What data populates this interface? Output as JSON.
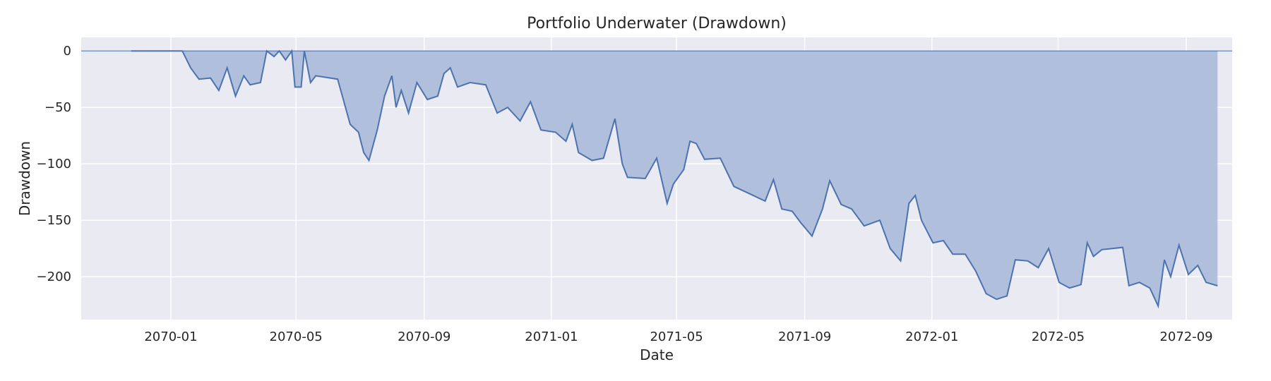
{
  "chart_data": {
    "type": "area",
    "title": "Portfolio Underwater (Drawdown)",
    "xlabel": "Date",
    "ylabel": "Drawdown",
    "grid": true,
    "xlim": [
      "2069-10-07",
      "2072-10-15"
    ],
    "ylim": [
      -238,
      12
    ],
    "x_ticks": [
      "2070-01",
      "2070-05",
      "2070-09",
      "2071-01",
      "2071-05",
      "2071-09",
      "2072-01",
      "2072-05",
      "2072-09"
    ],
    "y_ticks": [
      0,
      -50,
      -100,
      -150,
      -200
    ],
    "series": [
      {
        "line_color": "#4c72b0",
        "fill_color": "#b0bfdb",
        "points": [
          [
            "2069-11-24",
            0
          ],
          [
            "2070-01-12",
            0
          ],
          [
            "2070-01-20",
            -15
          ],
          [
            "2070-01-28",
            -25
          ],
          [
            "2070-02-08",
            -24
          ],
          [
            "2070-02-16",
            -35
          ],
          [
            "2070-02-24",
            -15
          ],
          [
            "2070-03-04",
            -40
          ],
          [
            "2070-03-12",
            -22
          ],
          [
            "2070-03-18",
            -30
          ],
          [
            "2070-03-28",
            -28
          ],
          [
            "2070-04-03",
            0
          ],
          [
            "2070-04-10",
            -5
          ],
          [
            "2070-04-15",
            0
          ],
          [
            "2070-04-21",
            -8
          ],
          [
            "2070-04-27",
            0
          ],
          [
            "2070-04-30",
            -32
          ],
          [
            "2070-05-06",
            -32
          ],
          [
            "2070-05-09",
            0
          ],
          [
            "2070-05-15",
            -28
          ],
          [
            "2070-05-20",
            -22
          ],
          [
            "2070-06-10",
            -25
          ],
          [
            "2070-06-22",
            -65
          ],
          [
            "2070-06-30",
            -72
          ],
          [
            "2070-07-05",
            -90
          ],
          [
            "2070-07-10",
            -97
          ],
          [
            "2070-07-18",
            -70
          ],
          [
            "2070-07-25",
            -40
          ],
          [
            "2070-08-01",
            -22
          ],
          [
            "2070-08-05",
            -50
          ],
          [
            "2070-08-10",
            -35
          ],
          [
            "2070-08-17",
            -55
          ],
          [
            "2070-08-25",
            -28
          ],
          [
            "2070-09-04",
            -43
          ],
          [
            "2070-09-14",
            -40
          ],
          [
            "2070-09-20",
            -20
          ],
          [
            "2070-09-26",
            -15
          ],
          [
            "2070-10-03",
            -32
          ],
          [
            "2070-10-15",
            -28
          ],
          [
            "2070-10-30",
            -30
          ],
          [
            "2070-11-10",
            -55
          ],
          [
            "2070-11-20",
            -50
          ],
          [
            "2070-12-02",
            -62
          ],
          [
            "2070-12-12",
            -45
          ],
          [
            "2070-12-22",
            -70
          ],
          [
            "2071-01-05",
            -72
          ],
          [
            "2071-01-15",
            -80
          ],
          [
            "2071-01-21",
            -65
          ],
          [
            "2071-01-27",
            -90
          ],
          [
            "2071-02-09",
            -97
          ],
          [
            "2071-02-20",
            -95
          ],
          [
            "2071-03-03",
            -60
          ],
          [
            "2071-03-10",
            -100
          ],
          [
            "2071-03-15",
            -112
          ],
          [
            "2071-04-01",
            -113
          ],
          [
            "2071-04-12",
            -95
          ],
          [
            "2071-04-22",
            -135
          ],
          [
            "2071-04-28",
            -118
          ],
          [
            "2071-05-08",
            -105
          ],
          [
            "2071-05-14",
            -80
          ],
          [
            "2071-05-20",
            -82
          ],
          [
            "2071-05-28",
            -96
          ],
          [
            "2071-06-12",
            -95
          ],
          [
            "2071-06-25",
            -120
          ],
          [
            "2071-07-09",
            -126
          ],
          [
            "2071-07-25",
            -133
          ],
          [
            "2071-08-02",
            -114
          ],
          [
            "2071-08-10",
            -140
          ],
          [
            "2071-08-20",
            -142
          ],
          [
            "2071-08-28",
            -152
          ],
          [
            "2071-09-08",
            -164
          ],
          [
            "2071-09-18",
            -140
          ],
          [
            "2071-09-25",
            -115
          ],
          [
            "2071-10-06",
            -136
          ],
          [
            "2071-10-16",
            -140
          ],
          [
            "2071-10-28",
            -155
          ],
          [
            "2071-11-12",
            -150
          ],
          [
            "2071-11-22",
            -175
          ],
          [
            "2071-12-02",
            -186
          ],
          [
            "2071-12-10",
            -135
          ],
          [
            "2071-12-16",
            -128
          ],
          [
            "2071-12-22",
            -150
          ],
          [
            "2072-01-02",
            -170
          ],
          [
            "2072-01-12",
            -168
          ],
          [
            "2072-01-21",
            -180
          ],
          [
            "2072-02-02",
            -180
          ],
          [
            "2072-02-12",
            -195
          ],
          [
            "2072-02-22",
            -215
          ],
          [
            "2072-03-03",
            -220
          ],
          [
            "2072-03-13",
            -217
          ],
          [
            "2072-03-21",
            -185
          ],
          [
            "2072-04-02",
            -186
          ],
          [
            "2072-04-12",
            -192
          ],
          [
            "2072-04-22",
            -175
          ],
          [
            "2072-05-02",
            -205
          ],
          [
            "2072-05-12",
            -210
          ],
          [
            "2072-05-23",
            -207
          ],
          [
            "2072-05-29",
            -170
          ],
          [
            "2072-06-04",
            -182
          ],
          [
            "2072-06-12",
            -176
          ],
          [
            "2072-06-22",
            -175
          ],
          [
            "2072-07-02",
            -174
          ],
          [
            "2072-07-08",
            -208
          ],
          [
            "2072-07-18",
            -205
          ],
          [
            "2072-07-28",
            -210
          ],
          [
            "2072-08-05",
            -226
          ],
          [
            "2072-08-11",
            -185
          ],
          [
            "2072-08-17",
            -200
          ],
          [
            "2072-08-25",
            -172
          ],
          [
            "2072-09-03",
            -198
          ],
          [
            "2072-09-12",
            -190
          ],
          [
            "2072-09-20",
            -205
          ],
          [
            "2072-10-01",
            -208
          ]
        ]
      }
    ]
  }
}
